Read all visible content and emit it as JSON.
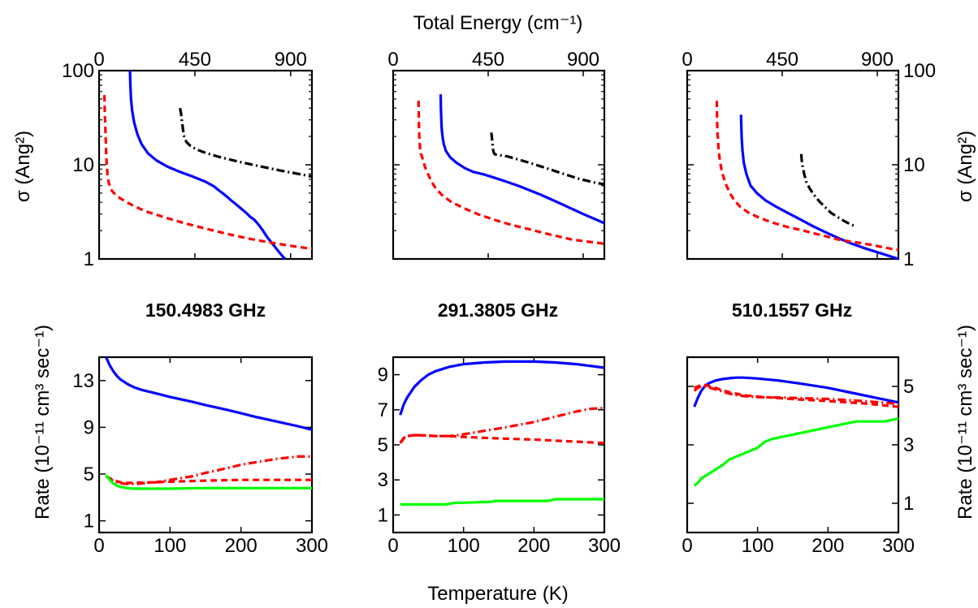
{
  "figure": {
    "top_xlabel": "Total Energy (cm⁻¹)",
    "bottom_xlabel": "Temperature (K)",
    "top_ylabel": "σ (Ang²)",
    "bottom_ylabel": "Rate (10⁻¹¹ cm³ sec⁻¹)",
    "panel_titles": [
      "150.4983 GHz",
      "291.3805 GHz",
      "510.1557 GHz"
    ]
  },
  "chart_data": [
    {
      "panel": "top-left",
      "type": "line",
      "xlim": [
        0,
        1000
      ],
      "ylim": [
        1,
        100
      ],
      "yscale": "log",
      "x_ticks": [
        "0",
        "450",
        "900"
      ],
      "y_ticks": [
        "1",
        "10",
        "100"
      ],
      "series": [
        {
          "color": "#0000ff",
          "style": "solid",
          "x": [
            145,
            147,
            150,
            155,
            165,
            180,
            200,
            230,
            270,
            320,
            380,
            440,
            500,
            540,
            560,
            580,
            600,
            620,
            650,
            690,
            710,
            730,
            750,
            770,
            790,
            820,
            850,
            870,
            875
          ],
          "y": [
            100,
            70,
            50,
            38,
            28,
            21,
            16.5,
            13.2,
            11.1,
            9.6,
            8.4,
            7.5,
            6.6,
            5.9,
            5.4,
            5.0,
            4.6,
            4.2,
            3.7,
            3.1,
            2.8,
            2.6,
            2.3,
            2.0,
            1.7,
            1.4,
            1.15,
            1.02,
            1.0
          ]
        },
        {
          "color": "#ff0000",
          "style": "dashed",
          "x": [
            25,
            26,
            28,
            30,
            32,
            34,
            36,
            38,
            40,
            45,
            50,
            55,
            60,
            70,
            80,
            100,
            130,
            170,
            220,
            300,
            400,
            500,
            600,
            700,
            800,
            900,
            1000
          ],
          "y": [
            55,
            42,
            30,
            22,
            16,
            12,
            10,
            8.6,
            7.5,
            6.5,
            6.0,
            5.6,
            5.3,
            5.0,
            4.8,
            4.4,
            4.0,
            3.6,
            3.2,
            2.8,
            2.4,
            2.1,
            1.85,
            1.65,
            1.5,
            1.38,
            1.28
          ]
        },
        {
          "color": "#000000",
          "style": "dashdot",
          "x": [
            380,
            385,
            390,
            395,
            400,
            410,
            430,
            460,
            500,
            560,
            640,
            740,
            850,
            950,
            1000
          ],
          "y": [
            40,
            35,
            28,
            23,
            20,
            17.5,
            15.8,
            14.5,
            13.4,
            12.2,
            11.0,
            9.8,
            8.7,
            7.9,
            7.5
          ]
        }
      ]
    },
    {
      "panel": "top-middle",
      "type": "line",
      "xlim": [
        0,
        1000
      ],
      "ylim": [
        1,
        100
      ],
      "yscale": "log",
      "x_ticks": [
        "0",
        "450",
        "900"
      ],
      "y_ticks": [],
      "series": [
        {
          "color": "#0000ff",
          "style": "solid",
          "x": [
            225,
            226,
            228,
            230,
            235,
            240,
            250,
            270,
            300,
            340,
            380,
            400,
            430,
            470,
            520,
            600,
            700,
            800,
            900,
            1000
          ],
          "y": [
            56,
            40,
            30,
            24,
            19,
            16.5,
            14,
            12,
            10.5,
            9.2,
            8.4,
            8.2,
            7.9,
            7.4,
            6.8,
            5.9,
            4.8,
            3.8,
            3.0,
            2.4
          ]
        },
        {
          "color": "#ff0000",
          "style": "dashed",
          "x": [
            120,
            121,
            122,
            123,
            125,
            128,
            130,
            135,
            140,
            150,
            165,
            180,
            200,
            230,
            270,
            330,
            400,
            480,
            560,
            650,
            750,
            850,
            950,
            1000
          ],
          "y": [
            48,
            36,
            28,
            22,
            17.5,
            14.5,
            13.2,
            12.5,
            11.5,
            9.6,
            8.0,
            6.7,
            5.7,
            4.8,
            4.1,
            3.5,
            3.0,
            2.6,
            2.3,
            2.05,
            1.8,
            1.6,
            1.5,
            1.45
          ]
        },
        {
          "color": "#000000",
          "style": "dashdot",
          "x": [
            465,
            467,
            470,
            472,
            475,
            480,
            490,
            510,
            540,
            580,
            640,
            720,
            800,
            880,
            950,
            1000
          ],
          "y": [
            22,
            20,
            17.5,
            15,
            13.8,
            13,
            12.8,
            12.6,
            12.3,
            11.6,
            10.6,
            9.3,
            8.1,
            7.1,
            6.5,
            6.2
          ]
        }
      ]
    },
    {
      "panel": "top-right",
      "type": "line",
      "xlim": [
        0,
        1000
      ],
      "ylim": [
        1,
        100
      ],
      "yscale": "log",
      "x_ticks": [
        "0",
        "450",
        "900"
      ],
      "y_ticks": [
        "1",
        "10",
        "100"
      ],
      "series": [
        {
          "color": "#0000ff",
          "style": "solid",
          "x": [
            255,
            256,
            258,
            262,
            268,
            280,
            300,
            330,
            370,
            420,
            480,
            540,
            600,
            660,
            720,
            780,
            840,
            900,
            960,
            1000
          ],
          "y": [
            34,
            26,
            19,
            14,
            10.5,
            8.0,
            6.0,
            5.0,
            4.2,
            3.6,
            3.05,
            2.6,
            2.2,
            1.9,
            1.65,
            1.45,
            1.3,
            1.18,
            1.07,
            1.0
          ]
        },
        {
          "color": "#ff0000",
          "style": "dashed",
          "x": [
            140,
            141,
            142,
            144,
            147,
            150,
            155,
            162,
            172,
            185,
            200,
            220,
            250,
            290,
            340,
            400,
            470,
            550,
            630,
            720,
            800,
            880,
            950,
            1000
          ],
          "y": [
            48,
            36,
            28,
            21,
            16.5,
            13.5,
            11,
            9,
            7.4,
            6.1,
            5.1,
            4.3,
            3.6,
            3.1,
            2.75,
            2.45,
            2.2,
            2.0,
            1.8,
            1.6,
            1.5,
            1.4,
            1.3,
            1.25
          ]
        },
        {
          "color": "#000000",
          "style": "dashdot",
          "x": [
            540,
            541,
            543,
            546,
            550,
            555,
            565,
            580,
            600,
            625,
            650,
            680,
            710,
            740,
            770,
            790
          ],
          "y": [
            13,
            12,
            10.8,
            9.8,
            8.8,
            7.8,
            6.5,
            5.6,
            4.8,
            4.1,
            3.6,
            3.1,
            2.8,
            2.55,
            2.35,
            2.25
          ]
        }
      ]
    },
    {
      "panel": "bottom-left",
      "type": "line",
      "title": "150.4983 GHz",
      "xlim": [
        0,
        300
      ],
      "ylim": [
        0,
        15
      ],
      "x_ticks": [
        "0",
        "100",
        "200",
        "300"
      ],
      "y_ticks": [
        "1",
        "5",
        "9",
        "13"
      ],
      "series": [
        {
          "color": "#0000ff",
          "style": "solid",
          "x": [
            10,
            15,
            20,
            25,
            30,
            35,
            40,
            50,
            60,
            80,
            100,
            130,
            150,
            180,
            200,
            220,
            250,
            280,
            300
          ],
          "y": [
            15,
            14.3,
            13.8,
            13.4,
            13.1,
            12.9,
            12.7,
            12.4,
            12.2,
            11.9,
            11.6,
            11.2,
            10.9,
            10.5,
            10.2,
            9.9,
            9.5,
            9.1,
            8.8
          ]
        },
        {
          "color": "#ff0000",
          "style": "dashed",
          "x": [
            10,
            20,
            30,
            40,
            50,
            60,
            80,
            100,
            130,
            160,
            200,
            250,
            300
          ],
          "y": [
            4.8,
            4.5,
            4.3,
            4.25,
            4.25,
            4.27,
            4.3,
            4.35,
            4.4,
            4.45,
            4.5,
            4.5,
            4.5
          ]
        },
        {
          "color": "#ff0000",
          "style": "dashdot",
          "x": [
            10,
            20,
            30,
            40,
            50,
            60,
            80,
            100,
            130,
            150,
            180,
            200,
            220,
            250,
            280,
            300
          ],
          "y": [
            4.8,
            4.4,
            4.2,
            4.15,
            4.15,
            4.2,
            4.3,
            4.5,
            4.8,
            5.1,
            5.5,
            5.8,
            6.0,
            6.3,
            6.5,
            6.5
          ]
        },
        {
          "color": "#00ff00",
          "style": "solid",
          "x": [
            10,
            15,
            20,
            25,
            30,
            40,
            50,
            70,
            100,
            140,
            160,
            200,
            250,
            300
          ],
          "y": [
            4.9,
            4.5,
            4.2,
            4.0,
            3.9,
            3.8,
            3.75,
            3.75,
            3.75,
            3.8,
            3.8,
            3.8,
            3.8,
            3.8
          ]
        }
      ]
    },
    {
      "panel": "bottom-middle",
      "type": "line",
      "title": "291.3805 GHz",
      "xlim": [
        0,
        300
      ],
      "ylim": [
        0,
        10
      ],
      "x_ticks": [
        "0",
        "100",
        "200",
        "300"
      ],
      "y_ticks": [
        "1",
        "3",
        "5",
        "7",
        "9"
      ],
      "series": [
        {
          "color": "#0000ff",
          "style": "solid",
          "x": [
            10,
            15,
            20,
            25,
            30,
            40,
            50,
            60,
            80,
            100,
            130,
            160,
            200,
            230,
            260,
            300
          ],
          "y": [
            6.7,
            7.3,
            7.7,
            8.0,
            8.3,
            8.7,
            9.0,
            9.2,
            9.45,
            9.6,
            9.7,
            9.75,
            9.75,
            9.7,
            9.6,
            9.4
          ]
        },
        {
          "color": "#ff0000",
          "style": "dashed",
          "x": [
            10,
            15,
            20,
            30,
            40,
            60,
            80,
            100,
            130,
            160,
            200,
            250,
            300
          ],
          "y": [
            5.1,
            5.35,
            5.5,
            5.55,
            5.55,
            5.5,
            5.5,
            5.45,
            5.4,
            5.35,
            5.3,
            5.2,
            5.1
          ]
        },
        {
          "color": "#ff0000",
          "style": "dashdot",
          "x": [
            10,
            15,
            20,
            30,
            40,
            60,
            80,
            100,
            130,
            160,
            200,
            230,
            260,
            280,
            300
          ],
          "y": [
            5.1,
            5.4,
            5.5,
            5.55,
            5.55,
            5.5,
            5.5,
            5.6,
            5.8,
            6.0,
            6.3,
            6.6,
            6.9,
            7.05,
            7.1
          ]
        },
        {
          "color": "#00ff00",
          "style": "solid",
          "x": [
            10,
            40,
            75,
            80,
            90,
            100,
            140,
            145,
            220,
            230,
            280,
            300
          ],
          "y": [
            1.6,
            1.6,
            1.6,
            1.65,
            1.7,
            1.7,
            1.75,
            1.8,
            1.8,
            1.9,
            1.9,
            1.9
          ]
        }
      ]
    },
    {
      "panel": "bottom-right",
      "type": "line",
      "title": "510.1557 GHz",
      "xlim": [
        0,
        300
      ],
      "ylim": [
        0,
        6
      ],
      "x_ticks": [
        "0",
        "100",
        "200",
        "300"
      ],
      "y_ticks": [
        "1",
        "3",
        "5"
      ],
      "series": [
        {
          "color": "#0000ff",
          "style": "solid",
          "x": [
            10,
            15,
            20,
            25,
            30,
            40,
            50,
            60,
            70,
            80,
            100,
            130,
            160,
            200,
            240,
            270,
            300
          ],
          "y": [
            4.3,
            4.6,
            4.85,
            5.0,
            5.1,
            5.2,
            5.25,
            5.28,
            5.3,
            5.3,
            5.27,
            5.2,
            5.1,
            4.95,
            4.75,
            4.6,
            4.45
          ]
        },
        {
          "color": "#ff0000",
          "style": "dashed",
          "x": [
            10,
            15,
            20,
            25,
            30,
            40,
            50,
            60,
            70,
            80,
            100,
            130,
            160,
            200,
            250,
            300
          ],
          "y": [
            4.95,
            5.0,
            5.05,
            5.05,
            5.02,
            4.95,
            4.87,
            4.8,
            4.75,
            4.7,
            4.65,
            4.6,
            4.55,
            4.5,
            4.42,
            4.3
          ]
        },
        {
          "color": "#ff0000",
          "style": "dashdot",
          "x": [
            10,
            15,
            20,
            25,
            30,
            40,
            50,
            60,
            70,
            80,
            100,
            130,
            160,
            200,
            250,
            300
          ],
          "y": [
            4.85,
            4.95,
            5.0,
            5.0,
            4.97,
            4.9,
            4.83,
            4.75,
            4.7,
            4.67,
            4.63,
            4.62,
            4.6,
            4.57,
            4.5,
            4.4
          ]
        },
        {
          "color": "#00ff00",
          "style": "solid",
          "x": [
            10,
            15,
            20,
            30,
            40,
            50,
            60,
            80,
            100,
            110,
            120,
            150,
            180,
            210,
            240,
            270,
            280,
            290,
            300
          ],
          "y": [
            1.6,
            1.7,
            1.85,
            2.0,
            2.15,
            2.3,
            2.5,
            2.7,
            2.9,
            3.1,
            3.2,
            3.35,
            3.5,
            3.65,
            3.8,
            3.8,
            3.8,
            3.85,
            3.9
          ]
        }
      ]
    }
  ]
}
